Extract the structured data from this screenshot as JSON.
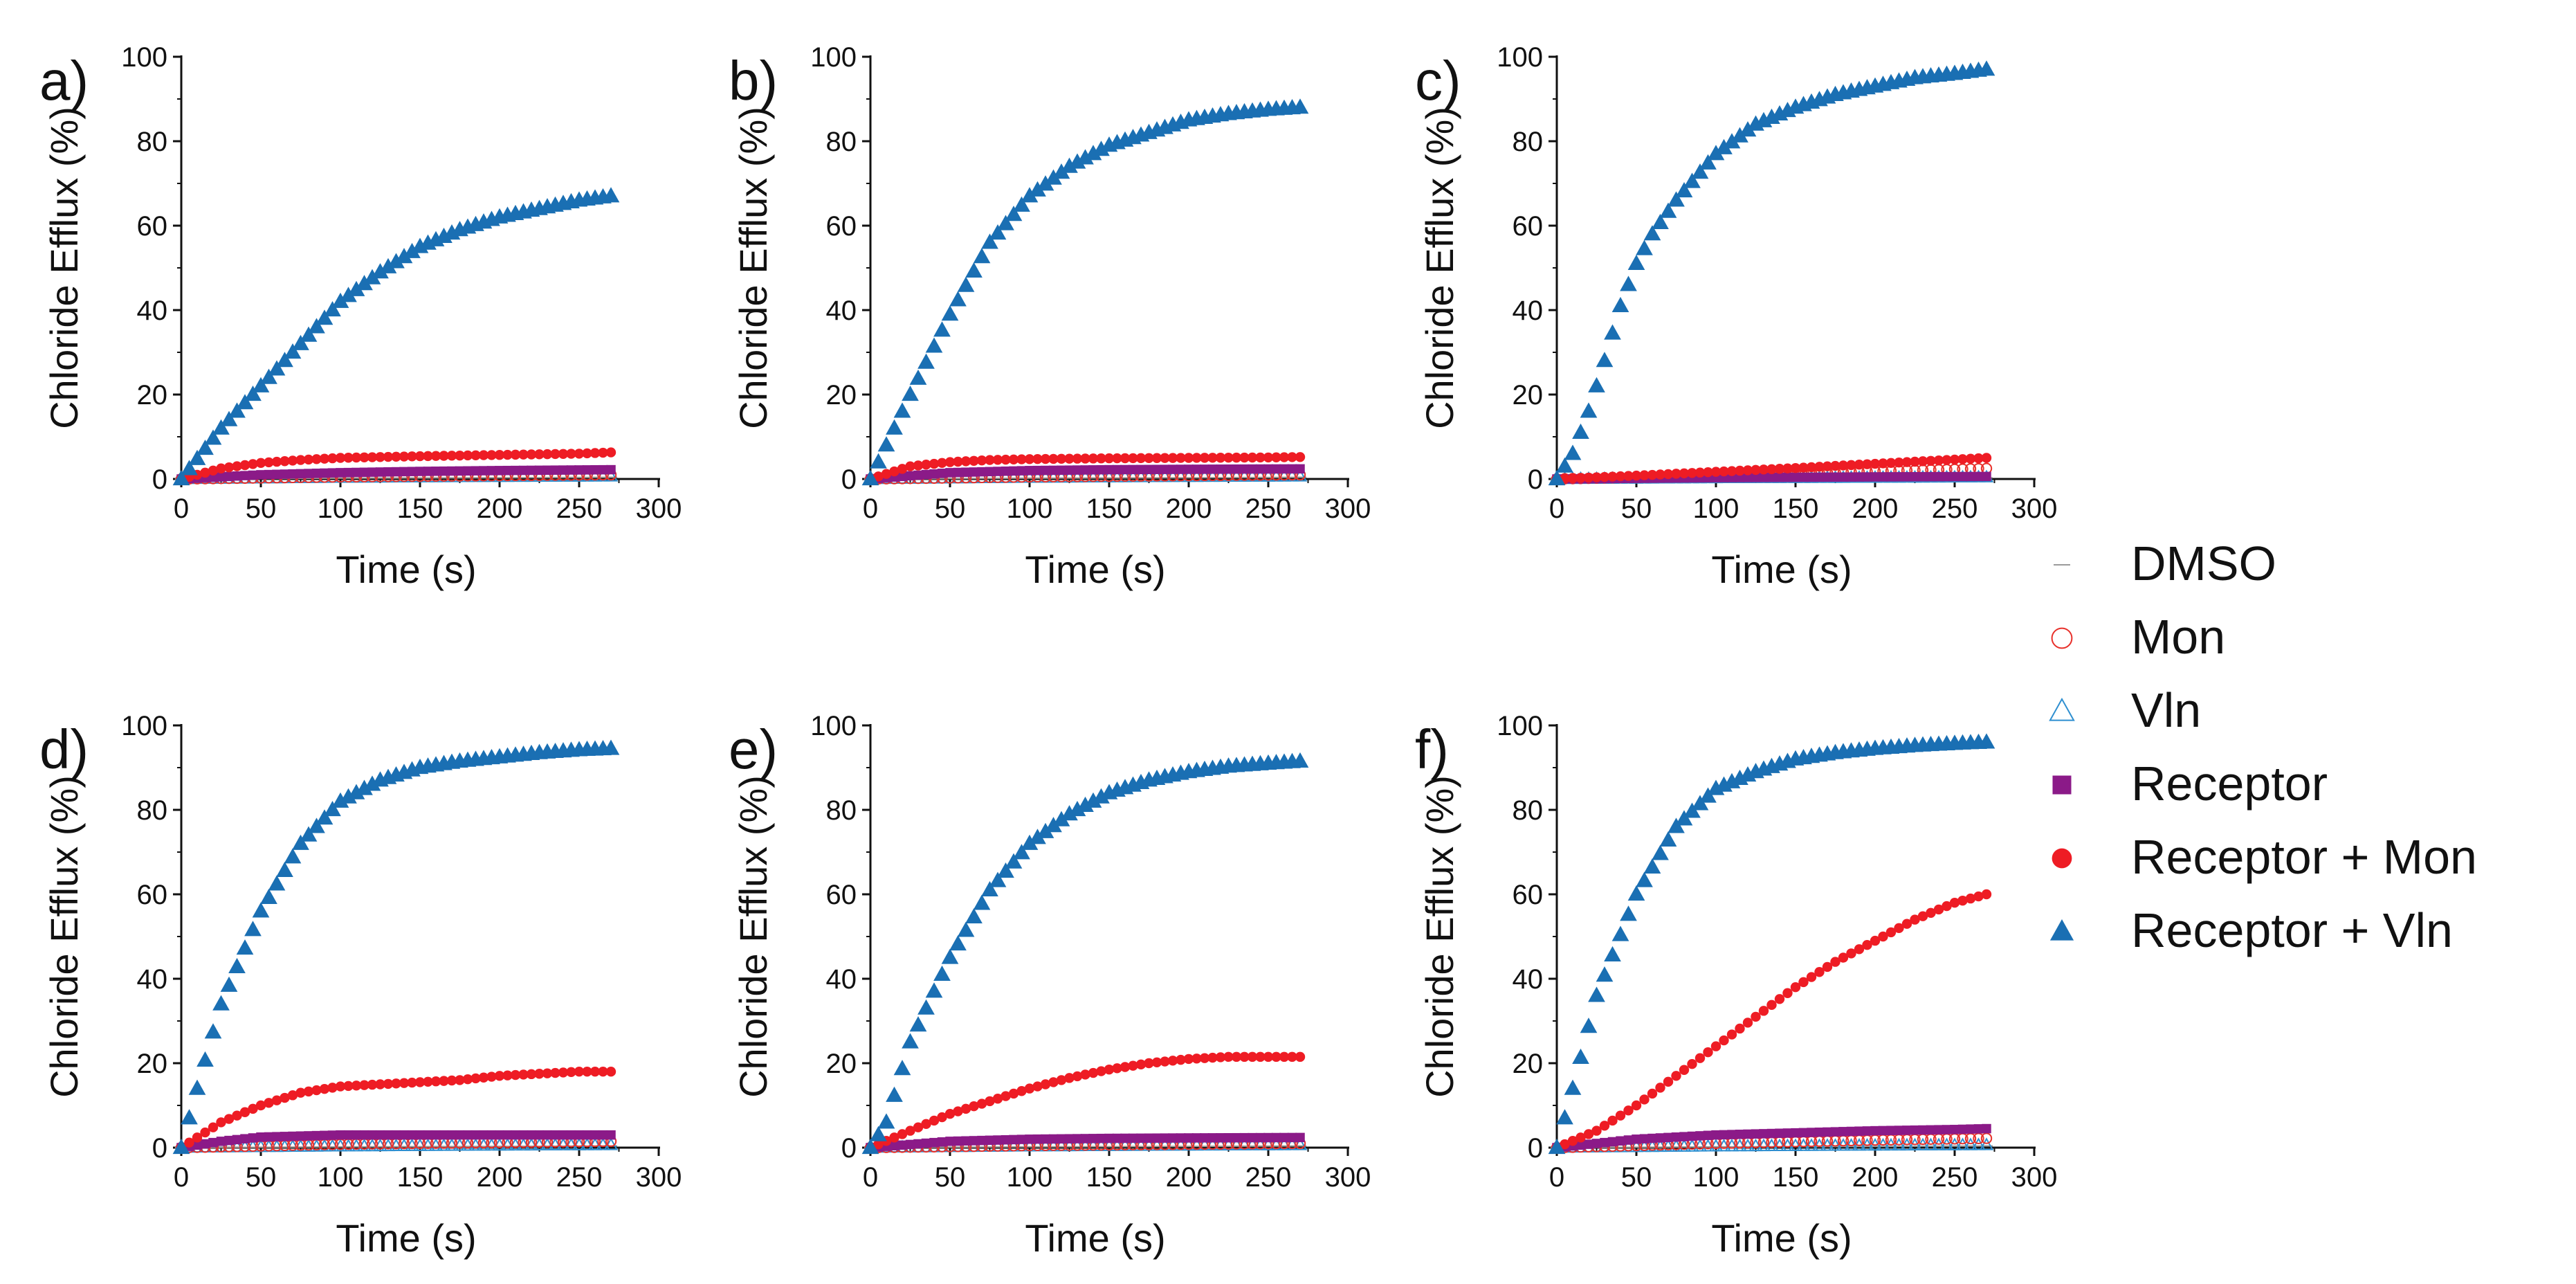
{
  "colors": {
    "dmso": "#9a9a9a",
    "mon": "#e8302a",
    "vln": "#2f8fd0",
    "receptor": "#8b1a88",
    "receptor_mon": "#ee1c24",
    "receptor_vln": "#1a6fb3",
    "axis": "#111111"
  },
  "legend": {
    "items": [
      {
        "key": "dmso",
        "label": "DMSO",
        "marker": "dash",
        "color": "#9a9a9a"
      },
      {
        "key": "mon",
        "label": "Mon",
        "marker": "open-circle",
        "color": "#e8302a"
      },
      {
        "key": "vln",
        "label": "Vln",
        "marker": "open-triangle",
        "color": "#2f8fd0"
      },
      {
        "key": "receptor",
        "label": "Receptor",
        "marker": "filled-square",
        "color": "#8b1a88"
      },
      {
        "key": "receptor_mon",
        "label": "Receptor + Mon",
        "marker": "filled-circle",
        "color": "#ee1c24"
      },
      {
        "key": "receptor_vln",
        "label": "Receptor + Vln",
        "marker": "filled-triangle",
        "color": "#1a6fb3"
      }
    ]
  },
  "chart_data": [
    {
      "panel": "a)",
      "type": "scatter",
      "xlabel": "Time (s)",
      "ylabel": "Chloride Efflux (%)",
      "xlim": [
        0,
        300
      ],
      "ylim": [
        0,
        100
      ],
      "xticks": [
        0,
        50,
        100,
        150,
        200,
        250,
        300
      ],
      "yticks": [
        0,
        20,
        40,
        60,
        80,
        100
      ],
      "series": [
        {
          "name": "Receptor + Vln",
          "x": [
            0,
            25,
            50,
            75,
            100,
            125,
            150,
            175,
            200,
            225,
            250,
            270
          ],
          "values": [
            0,
            12,
            22,
            32,
            42,
            49,
            55,
            59,
            62,
            64,
            66,
            67
          ]
        },
        {
          "name": "Receptor + Mon",
          "x": [
            0,
            25,
            50,
            75,
            100,
            150,
            200,
            250,
            270
          ],
          "values": [
            0,
            2.5,
            3.8,
            4.5,
            5.0,
            5.4,
            5.7,
            6.0,
            6.3
          ]
        },
        {
          "name": "Receptor",
          "x": [
            0,
            50,
            100,
            150,
            200,
            270
          ],
          "values": [
            0,
            1.0,
            1.5,
            1.8,
            2.0,
            2.2
          ]
        },
        {
          "name": "Mon",
          "x": [
            0,
            100,
            200,
            270
          ],
          "values": [
            0,
            0.5,
            0.8,
            1.0
          ]
        },
        {
          "name": "Vln",
          "x": [
            0,
            100,
            200,
            270
          ],
          "values": [
            0,
            0.3,
            0.5,
            0.6
          ]
        },
        {
          "name": "DMSO",
          "x": [
            0,
            100,
            200,
            270
          ],
          "values": [
            0,
            0.2,
            0.3,
            0.4
          ]
        }
      ]
    },
    {
      "panel": "b)",
      "type": "scatter",
      "xlabel": "Time (s)",
      "ylabel": "Chloride Efflux (%)",
      "xlim": [
        0,
        300
      ],
      "ylim": [
        0,
        100
      ],
      "xticks": [
        0,
        50,
        100,
        150,
        200,
        250,
        300
      ],
      "yticks": [
        0,
        20,
        40,
        60,
        80,
        100
      ],
      "series": [
        {
          "name": "Receptor + Vln",
          "x": [
            0,
            25,
            50,
            75,
            100,
            125,
            150,
            175,
            200,
            225,
            250,
            270
          ],
          "values": [
            0,
            20,
            39,
            56,
            67,
            74,
            79,
            82,
            85,
            86.5,
            87.5,
            88
          ]
        },
        {
          "name": "Receptor + Mon",
          "x": [
            0,
            25,
            50,
            75,
            100,
            150,
            200,
            250,
            270
          ],
          "values": [
            0,
            3.0,
            4.0,
            4.5,
            4.7,
            4.9,
            5.0,
            5.1,
            5.2
          ]
        },
        {
          "name": "Receptor",
          "x": [
            0,
            50,
            100,
            150,
            200,
            270
          ],
          "values": [
            0,
            1.5,
            2.0,
            2.2,
            2.3,
            2.4
          ]
        },
        {
          "name": "Mon",
          "x": [
            0,
            100,
            200,
            270
          ],
          "values": [
            0,
            0.5,
            0.8,
            1.0
          ]
        },
        {
          "name": "Vln",
          "x": [
            0,
            100,
            200,
            270
          ],
          "values": [
            0,
            0.3,
            0.5,
            0.6
          ]
        },
        {
          "name": "DMSO",
          "x": [
            0,
            100,
            200,
            270
          ],
          "values": [
            0,
            0.2,
            0.3,
            0.4
          ]
        }
      ]
    },
    {
      "panel": "c)",
      "type": "scatter",
      "xlabel": "Time (s)",
      "ylabel": "Chloride Efflux (%)",
      "xlim": [
        0,
        300
      ],
      "ylim": [
        0,
        100
      ],
      "xticks": [
        0,
        50,
        100,
        150,
        200,
        250,
        300
      ],
      "yticks": [
        0,
        20,
        40,
        60,
        80,
        100
      ],
      "series": [
        {
          "name": "Receptor + Vln",
          "x": [
            0,
            10,
            20,
            30,
            40,
            50,
            60,
            75,
            100,
            125,
            150,
            175,
            200,
            225,
            250,
            270
          ],
          "values": [
            0,
            6,
            16,
            28,
            41,
            51,
            58,
            66,
            77,
            84,
            88,
            91,
            93,
            95,
            96,
            97
          ]
        },
        {
          "name": "Receptor + Mon",
          "x": [
            0,
            50,
            100,
            150,
            200,
            250,
            270
          ],
          "values": [
            0,
            0.8,
            1.7,
            2.6,
            3.6,
            4.6,
            5.0
          ]
        },
        {
          "name": "Mon",
          "x": [
            0,
            100,
            200,
            270
          ],
          "values": [
            0,
            0.8,
            1.8,
            2.5
          ]
        },
        {
          "name": "Receptor",
          "x": [
            0,
            100,
            200,
            270
          ],
          "values": [
            0,
            0.3,
            0.5,
            0.6
          ]
        },
        {
          "name": "Vln",
          "x": [
            0,
            100,
            200,
            270
          ],
          "values": [
            0,
            0.2,
            0.3,
            0.4
          ]
        },
        {
          "name": "DMSO",
          "x": [
            0,
            100,
            200,
            270
          ],
          "values": [
            0,
            0.1,
            0.2,
            0.3
          ]
        }
      ]
    },
    {
      "panel": "d)",
      "type": "scatter",
      "xlabel": "Time (s)",
      "ylabel": "Chloride Efflux (%)",
      "xlim": [
        0,
        300
      ],
      "ylim": [
        0,
        100
      ],
      "xticks": [
        0,
        50,
        100,
        150,
        200,
        250,
        300
      ],
      "yticks": [
        0,
        20,
        40,
        60,
        80,
        100
      ],
      "series": [
        {
          "name": "Receptor + Vln",
          "x": [
            0,
            10,
            25,
            50,
            75,
            100,
            125,
            150,
            175,
            200,
            225,
            250,
            270
          ],
          "values": [
            0,
            14,
            34,
            56,
            72,
            82,
            87,
            90,
            91.5,
            92.5,
            93.5,
            94.2,
            94.5
          ]
        },
        {
          "name": "Receptor + Mon",
          "x": [
            0,
            25,
            50,
            75,
            100,
            125,
            150,
            175,
            200,
            225,
            250,
            270
          ],
          "values": [
            0,
            6,
            10,
            13,
            14.5,
            15,
            15.5,
            16,
            17,
            17.5,
            18,
            18
          ]
        },
        {
          "name": "Receptor",
          "x": [
            0,
            25,
            50,
            100,
            150,
            200,
            270
          ],
          "values": [
            0,
            1.5,
            2.5,
            3.0,
            3.0,
            3.0,
            3.0
          ]
        },
        {
          "name": "Mon",
          "x": [
            0,
            100,
            200,
            270
          ],
          "values": [
            0,
            0.8,
            1.2,
            1.5
          ]
        },
        {
          "name": "Vln",
          "x": [
            0,
            100,
            200,
            270
          ],
          "values": [
            0,
            0.3,
            0.5,
            0.6
          ]
        },
        {
          "name": "DMSO",
          "x": [
            0,
            100,
            200,
            270
          ],
          "values": [
            0,
            0.2,
            0.3,
            0.4
          ]
        }
      ]
    },
    {
      "panel": "e)",
      "type": "scatter",
      "xlabel": "Time (s)",
      "ylabel": "Chloride Efflux (%)",
      "xlim": [
        0,
        300
      ],
      "ylim": [
        0,
        100
      ],
      "xticks": [
        0,
        50,
        100,
        150,
        200,
        250,
        300
      ],
      "yticks": [
        0,
        20,
        40,
        60,
        80,
        100
      ],
      "series": [
        {
          "name": "Receptor + Vln",
          "x": [
            0,
            10,
            25,
            50,
            75,
            100,
            125,
            150,
            175,
            200,
            225,
            250,
            270
          ],
          "values": [
            0,
            6,
            25,
            45,
            61,
            72,
            79,
            84,
            87,
            89,
            90.3,
            91,
            91.5
          ]
        },
        {
          "name": "Receptor + Mon",
          "x": [
            0,
            25,
            50,
            75,
            100,
            125,
            150,
            175,
            200,
            225,
            250,
            270
          ],
          "values": [
            0,
            4,
            8,
            11,
            14,
            16.5,
            18.5,
            20,
            21,
            21.5,
            21.5,
            21.5
          ]
        },
        {
          "name": "Receptor",
          "x": [
            0,
            50,
            100,
            150,
            200,
            270
          ],
          "values": [
            0,
            1.5,
            2.0,
            2.2,
            2.3,
            2.4
          ]
        },
        {
          "name": "Mon",
          "x": [
            0,
            100,
            200,
            270
          ],
          "values": [
            0,
            0.5,
            0.8,
            1.0
          ]
        },
        {
          "name": "Vln",
          "x": [
            0,
            100,
            200,
            270
          ],
          "values": [
            0,
            0.3,
            0.5,
            0.6
          ]
        },
        {
          "name": "DMSO",
          "x": [
            0,
            100,
            200,
            270
          ],
          "values": [
            0,
            0.2,
            0.3,
            0.4
          ]
        }
      ]
    },
    {
      "panel": "f)",
      "type": "scatter",
      "xlabel": "Time (s)",
      "ylabel": "Chloride Efflux (%)",
      "xlim": [
        0,
        300
      ],
      "ylim": [
        0,
        100
      ],
      "xticks": [
        0,
        50,
        100,
        150,
        200,
        250,
        300
      ],
      "yticks": [
        0,
        20,
        40,
        60,
        80,
        100
      ],
      "series": [
        {
          "name": "Receptor + Vln",
          "x": [
            0,
            10,
            25,
            50,
            75,
            100,
            125,
            150,
            175,
            200,
            225,
            250,
            270
          ],
          "values": [
            0,
            14,
            36,
            60,
            76,
            85,
            89,
            92,
            93.5,
            94.5,
            95.2,
            95.7,
            96
          ]
        },
        {
          "name": "Receptor + Mon",
          "x": [
            0,
            25,
            50,
            75,
            100,
            125,
            150,
            175,
            200,
            225,
            250,
            270
          ],
          "values": [
            0,
            4,
            10,
            17,
            24,
            31,
            38,
            44,
            49,
            54,
            58,
            60
          ]
        },
        {
          "name": "Receptor",
          "x": [
            0,
            50,
            100,
            150,
            200,
            250,
            270
          ],
          "values": [
            0,
            2.0,
            3.0,
            3.5,
            4.0,
            4.3,
            4.5
          ]
        },
        {
          "name": "Mon",
          "x": [
            0,
            100,
            200,
            270
          ],
          "values": [
            0,
            1.0,
            1.8,
            2.2
          ]
        },
        {
          "name": "Vln",
          "x": [
            0,
            100,
            200,
            270
          ],
          "values": [
            0,
            0.3,
            0.5,
            0.6
          ]
        },
        {
          "name": "DMSO",
          "x": [
            0,
            100,
            200,
            270
          ],
          "values": [
            0,
            0.2,
            0.3,
            0.4
          ]
        }
      ]
    }
  ]
}
